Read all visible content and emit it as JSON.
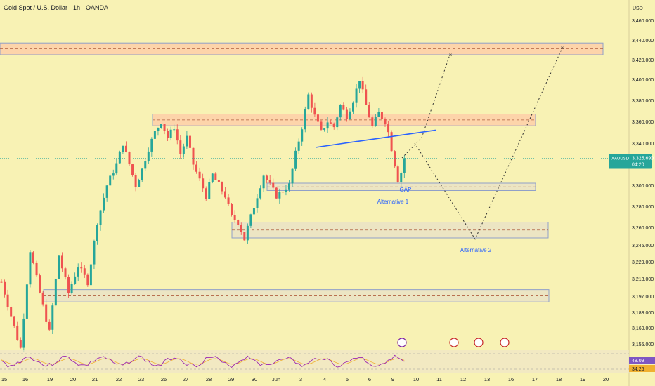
{
  "header": {
    "symbol_line": "Gold Spot / U.S. Dollar · 1h · OANDA"
  },
  "colors": {
    "background": "#f8f2b4",
    "up_candle": "#26a69a",
    "down_candle": "#ef5350",
    "zone_fill": "#fdd0a8",
    "zone_stroke": "#90a0c8",
    "trendline": "#2962ff",
    "annotation": "#2962ff",
    "price_tag": "#26a69a",
    "rsi_line": "#9c27b0",
    "rsi_ma": "#f0b030"
  },
  "chart_data": {
    "type": "candlestick",
    "currency": "USD",
    "timeframe": "1h",
    "x_ticks": [
      "15",
      "16",
      "19",
      "20",
      "21",
      "22",
      "23",
      "26",
      "27",
      "28",
      "29",
      "30",
      "Jun",
      "3",
      "4",
      "5",
      "6",
      "9",
      "10",
      "11",
      "12",
      "13",
      "16",
      "17",
      "18",
      "19",
      "20"
    ],
    "y_ticks": [
      "3,460.000",
      "3,440.000",
      "3,420.000",
      "3,400.000",
      "3,380.000",
      "3,360.000",
      "3,340.000",
      "3,300.000",
      "3,280.000",
      "3,260.000",
      "3,245.000",
      "3,229.000",
      "3,213.000",
      "3,197.000",
      "3,183.000",
      "3,169.000",
      "3,155.000"
    ],
    "ylim": [
      3150,
      3465
    ],
    "last_price": {
      "symbol": "XAUUSD",
      "value": "3,325.690",
      "countdown": "04:20"
    },
    "price_path": [
      [
        0,
        3210
      ],
      [
        3,
        3180
      ],
      [
        6,
        3150
      ],
      [
        9,
        3240
      ],
      [
        12,
        3200
      ],
      [
        15,
        3165
      ],
      [
        18,
        3235
      ],
      [
        21,
        3200
      ],
      [
        24,
        3225
      ],
      [
        27,
        3210
      ],
      [
        30,
        3265
      ],
      [
        33,
        3300
      ],
      [
        36,
        3320
      ],
      [
        38,
        3340
      ],
      [
        40,
        3320
      ],
      [
        42,
        3300
      ],
      [
        44,
        3315
      ],
      [
        46,
        3335
      ],
      [
        48,
        3350
      ],
      [
        50,
        3360
      ],
      [
        52,
        3345
      ],
      [
        54,
        3355
      ],
      [
        56,
        3330
      ],
      [
        58,
        3345
      ],
      [
        60,
        3320
      ],
      [
        62,
        3305
      ],
      [
        64,
        3290
      ],
      [
        66,
        3310
      ],
      [
        68,
        3300
      ],
      [
        70,
        3290
      ],
      [
        72,
        3270
      ],
      [
        74,
        3265
      ],
      [
        76,
        3250
      ],
      [
        78,
        3270
      ],
      [
        80,
        3290
      ],
      [
        82,
        3310
      ],
      [
        84,
        3300
      ],
      [
        86,
        3290
      ],
      [
        88,
        3295
      ],
      [
        90,
        3300
      ],
      [
        92,
        3330
      ],
      [
        94,
        3355
      ],
      [
        96,
        3385
      ],
      [
        98,
        3365
      ],
      [
        100,
        3350
      ],
      [
        102,
        3360
      ],
      [
        104,
        3355
      ],
      [
        106,
        3375
      ],
      [
        108,
        3365
      ],
      [
        110,
        3380
      ],
      [
        112,
        3400
      ],
      [
        114,
        3375
      ],
      [
        116,
        3355
      ],
      [
        118,
        3368
      ],
      [
        120,
        3360
      ],
      [
        121,
        3350
      ],
      [
        122,
        3335
      ],
      [
        123,
        3320
      ],
      [
        124,
        3305
      ],
      [
        125,
        3312
      ],
      [
        126,
        3326
      ]
    ],
    "annotations": [
      "GAP",
      "Alternative 1",
      "Alternative 2"
    ],
    "zones": [
      {
        "low": 3425,
        "high": 3437
      },
      {
        "low": 3356,
        "high": 3367
      },
      {
        "low": 3295,
        "high": 3302
      },
      {
        "low": 3251,
        "high": 3265
      },
      {
        "low": 3192,
        "high": 3203
      }
    ],
    "trendline": [
      [
        3336,
        3352
      ]
    ],
    "projections": {
      "alternative_1": [
        3326,
        3345,
        3425
      ],
      "alternative_2": [
        3326,
        3250,
        3430
      ]
    },
    "rsi": {
      "value": "48.09",
      "ma": "34.26"
    }
  }
}
